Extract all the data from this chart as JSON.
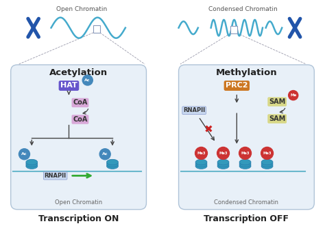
{
  "bg_color": "#ffffff",
  "left_box_color": "#e8f0f8",
  "left_box_edge": "#b0c4d8",
  "right_box_color": "#e8f0f8",
  "right_box_edge": "#b0c4d8",
  "left_title": "Acetylation",
  "right_title": "Methylation",
  "left_subtitle": "Open Chromatin",
  "right_subtitle": "Condensed Chromatin",
  "left_bottom": "Transcription ON",
  "right_bottom": "Transcription OFF",
  "top_left_label": "Open Chromatin",
  "top_right_label": "Condensed Chromatin",
  "hat_color": "#6655cc",
  "hat_text": "HAT",
  "coa_color": "#d8a8d8",
  "coa_text": "CoA",
  "ac_color": "#4488bb",
  "ac_text": "Ac",
  "rnapii_color": "#c8d8f0",
  "rnapii_text": "RNAPII",
  "rnapii_border": "#8899cc",
  "prc2_color": "#cc7722",
  "prc2_text": "PRC2",
  "sam_color": "#d8d888",
  "sam_text": "SAM",
  "me_color": "#cc3333",
  "me_text": "Me",
  "me3_text": "Me3",
  "nucleosome_color": "#3399bb",
  "nucleosome_dark": "#2277aa",
  "dna_color": "#6ab8cc",
  "arrow_color": "#444444",
  "green_arrow": "#33aa33",
  "red_x_color": "#cc2222",
  "chrom_color": "#2255aa",
  "wave_color": "#44aacc"
}
